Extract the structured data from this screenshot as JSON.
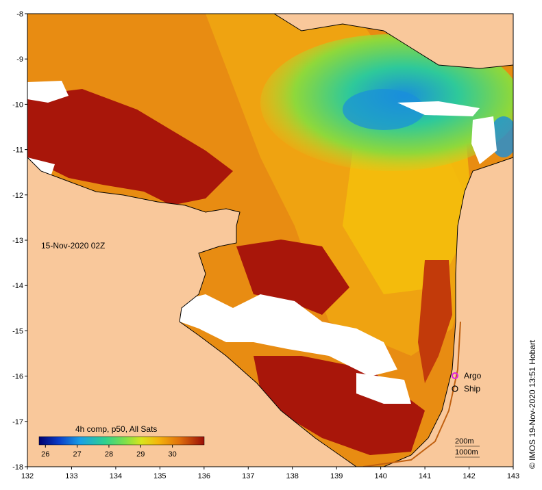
{
  "map": {
    "date_label": "15-Nov-2020 02Z",
    "credit": "© IMOS 19-Nov-2020 13:51 Hobart",
    "lon_range": [
      132,
      143
    ],
    "lat_range": [
      -18,
      -8
    ],
    "lon_ticks": [
      "132",
      "133",
      "134",
      "135",
      "136",
      "137",
      "138",
      "139",
      "140",
      "141",
      "142",
      "143"
    ],
    "lat_ticks": [
      "-8",
      "-9",
      "-10",
      "-11",
      "-12",
      "-13",
      "-14",
      "-15",
      "-16",
      "-17",
      "-18"
    ]
  },
  "colorbar": {
    "title": "4h comp, p50, All Sats",
    "ticks": [
      "26",
      "27",
      "28",
      "29",
      "30"
    ],
    "range": [
      25.8,
      31
    ]
  },
  "legend": {
    "argo": "Argo",
    "ship": "Ship"
  },
  "depth_contours": {
    "shallow": "200m",
    "deep": "1000m"
  },
  "colors": {
    "land": "#f9c89b",
    "no_data": "#ffffff",
    "sst_hot": "#a8160a",
    "sst_warm": "#e88c12",
    "sst_mid": "#f5b60c",
    "sst_cool": "#9fd631",
    "sst_cold": "#1a8edb",
    "argo_marker": "#e020e0"
  }
}
